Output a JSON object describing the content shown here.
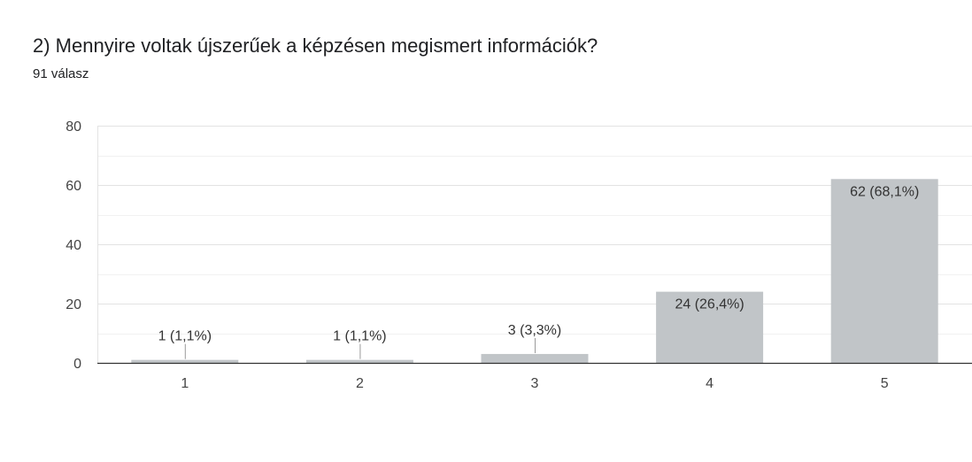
{
  "header": {
    "question": "2) Mennyire voltak újszerűek a képzésen megismert információk?",
    "response_count": "91 válasz"
  },
  "chart_data": {
    "type": "bar",
    "title": "2) Mennyire voltak újszerűek a képzésen megismert információk?",
    "categories": [
      "1",
      "2",
      "3",
      "4",
      "5"
    ],
    "values": [
      1,
      1,
      3,
      24,
      62
    ],
    "labels": [
      "1 (1,1%)",
      "1 (1,1%)",
      "3 (3,3%)",
      "24 (26,4%)",
      "62 (68,1%)"
    ],
    "ylim": [
      0,
      80
    ],
    "yticks": [
      0,
      20,
      40,
      60,
      80
    ],
    "grid": true,
    "bar_color": "#c1c5c8",
    "xlabel": "",
    "ylabel": ""
  }
}
